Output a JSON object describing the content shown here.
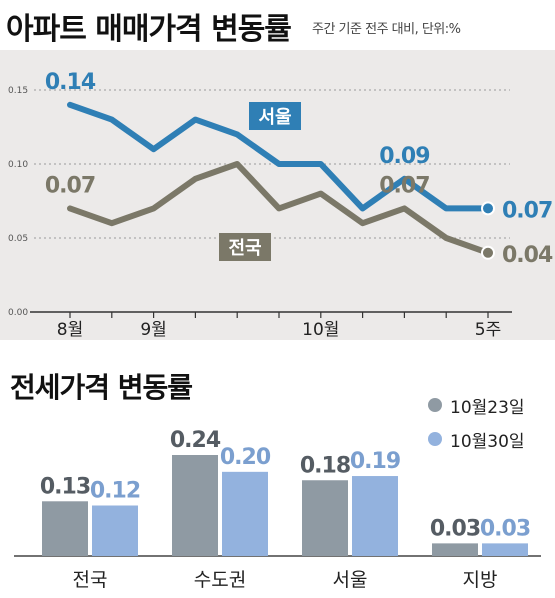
{
  "chart_data": [
    {
      "type": "line",
      "title": "아파트 매매가격 변동률",
      "subtitle": "주간 기준 전주 대비, 단위:%",
      "ylim": [
        0,
        0.15
      ],
      "y_ticks": [
        "0.00",
        "0.05",
        "0.10",
        "0.15"
      ],
      "x": [
        1,
        2,
        3,
        4,
        5,
        6,
        7,
        8,
        9,
        10,
        11
      ],
      "x_ticks": [
        {
          "x": 1,
          "label": "8월"
        },
        {
          "x": 3,
          "label": "9월"
        },
        {
          "x": 7,
          "label": "10월"
        },
        {
          "x": 11,
          "label": "5주"
        }
      ],
      "grid": true,
      "series": [
        {
          "name": "서울",
          "color": "#2f7fb5",
          "values": [
            0.14,
            0.13,
            0.11,
            0.13,
            0.12,
            0.1,
            0.1,
            0.07,
            0.09,
            0.07,
            0.07
          ],
          "labels": [
            {
              "x": 1,
              "text": "0.14"
            },
            {
              "x": 9,
              "text": "0.09"
            },
            {
              "x": 11,
              "text": "0.07"
            }
          ]
        },
        {
          "name": "전국",
          "color": "#7b7868",
          "values": [
            0.07,
            0.06,
            0.07,
            0.09,
            0.1,
            0.07,
            0.08,
            0.06,
            0.07,
            0.05,
            0.04
          ],
          "labels": [
            {
              "x": 1,
              "text": "0.07"
            },
            {
              "x": 9,
              "text": "0.07"
            },
            {
              "x": 11,
              "text": "0.04"
            }
          ]
        }
      ]
    },
    {
      "type": "bar",
      "title": "전세가격 변동률",
      "categories": [
        "전국",
        "수도권",
        "서울",
        "지방"
      ],
      "series": [
        {
          "name": "10월23일",
          "color": "#8f9aa3",
          "label_color": "#555c63",
          "values": [
            0.13,
            0.24,
            0.18,
            0.03
          ],
          "labels": [
            "0.13",
            "0.24",
            "0.18",
            "0.03"
          ]
        },
        {
          "name": "10월30일",
          "color": "#93b2de",
          "label_color": "#7b9fcf",
          "values": [
            0.12,
            0.2,
            0.19,
            0.03
          ],
          "labels": [
            "0.12",
            "0.20",
            "0.19",
            "0.03"
          ]
        }
      ],
      "ylim": [
        0,
        0.24
      ],
      "legend_position": "top-right"
    }
  ]
}
